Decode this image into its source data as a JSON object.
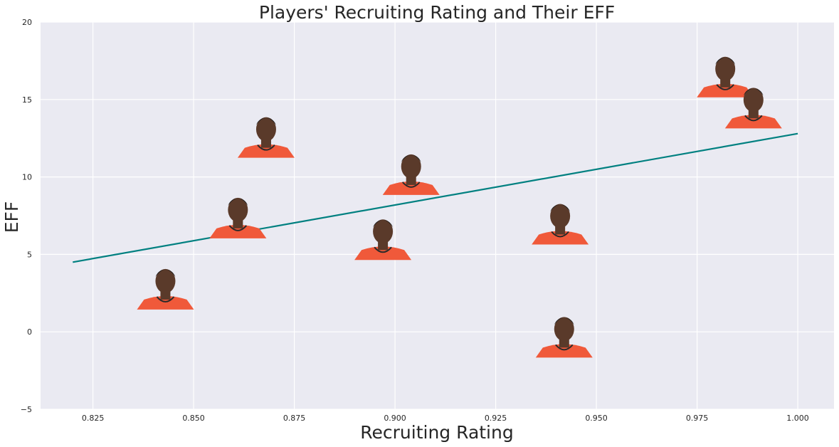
{
  "chart_data": {
    "type": "scatter",
    "title": "Players' Recruiting Rating and Their EFF",
    "xlabel": "Recruiting Rating",
    "ylabel": "EFF",
    "xlim": [
      0.812,
      1.009
    ],
    "ylim": [
      -5,
      20
    ],
    "xticks": [
      "0.825",
      "0.850",
      "0.875",
      "0.900",
      "0.925",
      "0.950",
      "0.975",
      "1.000"
    ],
    "xtick_values": [
      0.825,
      0.85,
      0.875,
      0.9,
      0.925,
      0.95,
      0.975,
      1.0
    ],
    "yticks": [
      "−5",
      "0",
      "5",
      "10",
      "15",
      "20"
    ],
    "ytick_values": [
      -5,
      0,
      5,
      10,
      15,
      20
    ],
    "grid": true,
    "points": [
      {
        "x": 0.843,
        "y": 3.0
      },
      {
        "x": 0.868,
        "y": 12.8
      },
      {
        "x": 0.861,
        "y": 7.6
      },
      {
        "x": 0.897,
        "y": 6.2
      },
      {
        "x": 0.904,
        "y": 10.4
      },
      {
        "x": 0.941,
        "y": 7.2
      },
      {
        "x": 0.942,
        "y": -0.1
      },
      {
        "x": 0.982,
        "y": 16.7
      },
      {
        "x": 0.989,
        "y": 14.7
      }
    ],
    "trendline": {
      "x": [
        0.82,
        1.0
      ],
      "y": [
        4.5,
        12.8
      ]
    },
    "colors": {
      "background": "#eaeaf2",
      "grid": "#ffffff",
      "trendline": "#008080",
      "jersey": "#f0593a",
      "skin": "#5a3a2a"
    }
  }
}
